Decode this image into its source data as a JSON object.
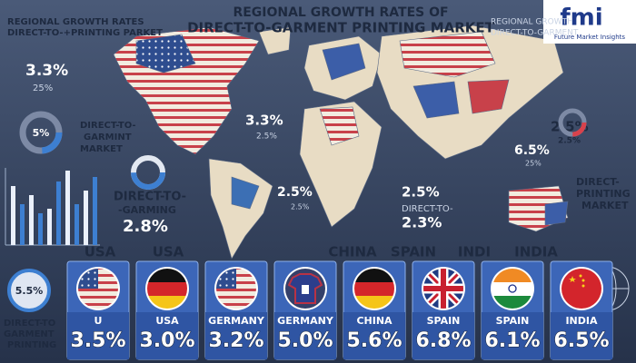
{
  "header": {
    "title": [
      "REGIONAL GROWTH RATES OF",
      "DIRECT-TO-GARMENT PRINTING MARKET"
    ],
    "logo": "fmi",
    "logo_subtitle": "Future Market Insights"
  },
  "corner_left": [
    "REGIONAL GROWTH RATES",
    "DIRECT-TO-+PRINTING PARKET"
  ],
  "corner_right": [
    "REGIONAL GROWTH",
    "DIRECT-TO-GARMENT"
  ],
  "left_panel": {
    "stat": "3.3%",
    "sub": "25%",
    "donut": "5%",
    "caption": [
      "DIRECT-TO-",
      "GARMINT",
      "MARKET"
    ]
  },
  "callouts": [
    "3.3%",
    "2.5%",
    "DIRECT-TO-",
    "-GARMING",
    "2.8%",
    "2.5%",
    "2.5%",
    "2.5%",
    "DIRECT-TO-",
    "2.3%",
    "2.5%",
    "2.5%",
    "6.5%",
    "25%"
  ],
  "right_caption": [
    "DIRECT-",
    "PRINTING",
    "MARKET"
  ],
  "bottom_left": {
    "donut": "5.5%",
    "caption": [
      "DIRECT-TO",
      "GARMENT",
      "PRINTING"
    ]
  },
  "card_headings": [
    "USA",
    "USA",
    "CHINA",
    "SPAIN",
    "INDI",
    "INDIA"
  ],
  "cards": [
    {
      "name": "U",
      "value": "3.5%"
    },
    {
      "name": "USA",
      "value": "3.0%"
    },
    {
      "name": "GERMANY",
      "value": "3.2%"
    },
    {
      "name": "GERMANY",
      "value": "5.0%"
    },
    {
      "name": "CHINA",
      "value": "5.6%"
    },
    {
      "name": "SPAIN",
      "value": "6.8%"
    },
    {
      "name": "SPAIN",
      "value": "6.1%"
    },
    {
      "name": "INDIA",
      "value": "6.5%"
    }
  ]
}
